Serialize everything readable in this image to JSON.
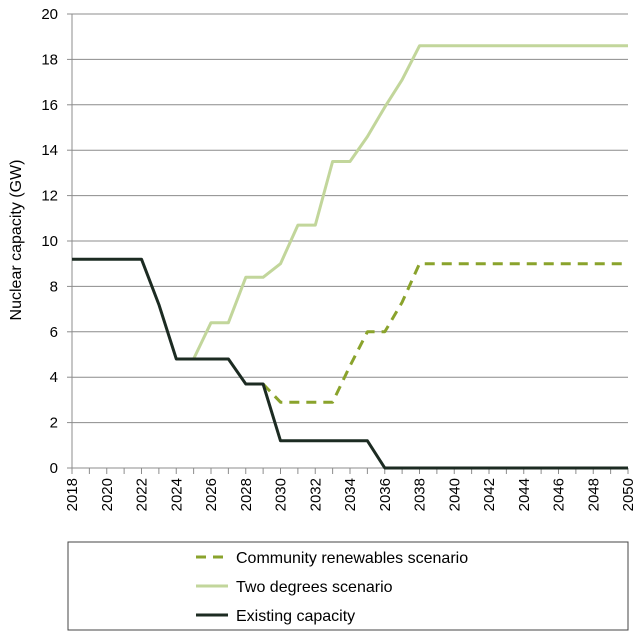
{
  "chart_data": {
    "type": "line",
    "title": "",
    "xlabel": "",
    "ylabel": "Nuclear capacity (GW)",
    "xlim": [
      2018,
      2050
    ],
    "ylim": [
      0,
      20
    ],
    "x_ticks": [
      2018,
      2020,
      2022,
      2024,
      2026,
      2028,
      2030,
      2032,
      2034,
      2036,
      2038,
      2040,
      2042,
      2044,
      2046,
      2048,
      2050
    ],
    "y_ticks": [
      0,
      2,
      4,
      6,
      8,
      10,
      12,
      14,
      16,
      18,
      20
    ],
    "grid": "horizontal",
    "legend_position": "bottom",
    "series": [
      {
        "name": "Community renewables scenario",
        "color": "#8aa32c",
        "style": "dashed",
        "x": [
          2029,
          2030,
          2031,
          2032,
          2033,
          2034,
          2035,
          2036,
          2037,
          2038,
          2050
        ],
        "y": [
          3.7,
          2.9,
          2.9,
          2.9,
          2.9,
          4.5,
          6.0,
          6.0,
          7.3,
          9.0,
          9.0
        ]
      },
      {
        "name": "Two degrees scenario",
        "color": "#c2d69b",
        "style": "solid",
        "x": [
          2025,
          2026,
          2027,
          2028,
          2029,
          2030,
          2031,
          2032,
          2033,
          2034,
          2035,
          2036,
          2037,
          2038,
          2050
        ],
        "y": [
          4.8,
          6.4,
          6.4,
          8.4,
          8.4,
          9.0,
          10.7,
          10.7,
          13.5,
          13.5,
          14.6,
          15.9,
          17.1,
          18.6,
          18.6
        ]
      },
      {
        "name": "Existing capacity",
        "color": "#1c2b22",
        "style": "solid",
        "x": [
          2018,
          2019,
          2020,
          2021,
          2022,
          2023,
          2024,
          2025,
          2026,
          2027,
          2028,
          2029,
          2030,
          2031,
          2032,
          2033,
          2034,
          2035,
          2036,
          2050
        ],
        "y": [
          9.2,
          9.2,
          9.2,
          9.2,
          9.2,
          7.2,
          4.8,
          4.8,
          4.8,
          4.8,
          3.7,
          3.7,
          1.2,
          1.2,
          1.2,
          1.2,
          1.2,
          1.2,
          0,
          0
        ]
      }
    ]
  },
  "legend": {
    "items": [
      "Community renewables scenario",
      "Two degrees scenario",
      "Existing capacity"
    ]
  },
  "colors": {
    "gridline": "#8c8c8c",
    "axis": "#8c8c8c",
    "legend_border": "#444444"
  }
}
